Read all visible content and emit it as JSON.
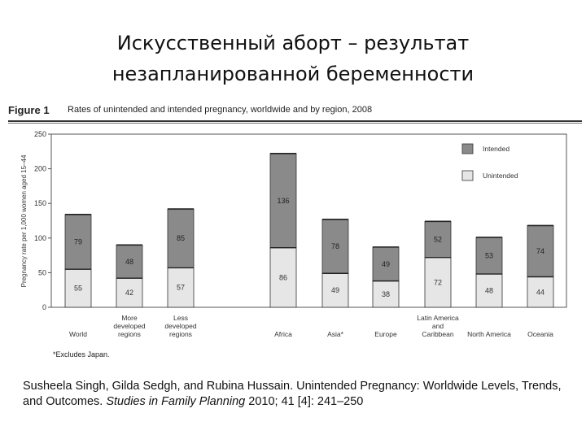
{
  "slide": {
    "title_line1": "Искусственный аборт – результат",
    "title_line2": "незапланированной беременности"
  },
  "figure": {
    "label": "Figure 1",
    "caption": "Rates of unintended and intended pregnancy, worldwide and by region, 2008",
    "footnote": "*Excludes Japan."
  },
  "citation": {
    "part1": "Susheela Singh, Gilda Sedgh, and Rubina Hussain. Unintended Pregnancy: Worldwide Levels, Trends, and Outcomes.",
    "journal": "Studies in Family Planning",
    "part2": "2010; 41 [4]: 241–250"
  },
  "colors": {
    "intended": "#8a8a8a",
    "unintended": "#e6e6e6",
    "outline": "#333333"
  },
  "chart_data": {
    "type": "bar",
    "stacked": true,
    "title": "Rates of unintended and intended pregnancy, worldwide and by region, 2008",
    "ylabel": "Pregnancy rate per 1,000 women aged 15–44",
    "xlabel": "",
    "ylim": [
      0,
      250
    ],
    "yticks": [
      0,
      50,
      100,
      150,
      200,
      250
    ],
    "categories": [
      [
        "World"
      ],
      [
        "More",
        "developed",
        "regions"
      ],
      [
        "Less",
        "developed",
        "regions"
      ],
      [
        "Africa"
      ],
      [
        "Asia*"
      ],
      [
        "Europe"
      ],
      [
        "Latin America",
        "and",
        "Caribbean"
      ],
      [
        "North America"
      ],
      [
        "Oceania"
      ]
    ],
    "series": [
      {
        "name": "Unintended",
        "values": [
          55,
          42,
          57,
          86,
          49,
          38,
          72,
          48,
          44
        ]
      },
      {
        "name": "Intended",
        "values": [
          79,
          48,
          85,
          136,
          78,
          49,
          52,
          53,
          74
        ]
      }
    ],
    "legend": {
      "position": "top-right",
      "entries": [
        "Intended",
        "Unintended"
      ]
    },
    "grid": false
  }
}
